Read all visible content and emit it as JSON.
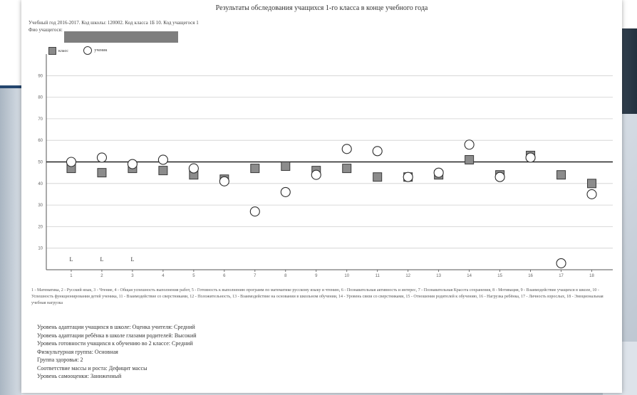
{
  "report": {
    "title": "Результаты обследования учащихся 1-го класса в конце учебного года",
    "meta_line1": "Учебный год 2016-2017. Код школы: 120002. Код класса 1Б 10. Код учащегося 1",
    "meta_line2": "Фио учащегося:"
  },
  "legend": {
    "class_label": "класс",
    "student_label": "ученик"
  },
  "chart_data": {
    "type": "scatter",
    "categories": [
      "1",
      "2",
      "3",
      "4",
      "5",
      "6",
      "7",
      "8",
      "9",
      "10",
      "11",
      "12",
      "13",
      "14",
      "15",
      "16",
      "17",
      "18"
    ],
    "ylim": [
      0,
      100
    ],
    "yticks": [
      10,
      20,
      30,
      40,
      50,
      60,
      70,
      80,
      90
    ],
    "reference_line": 50,
    "series": [
      {
        "name": "класс",
        "marker": "square",
        "values": [
          47,
          45,
          47,
          46,
          44,
          42,
          47,
          48,
          46,
          47,
          43,
          43,
          44,
          51,
          44,
          53,
          44,
          40
        ]
      },
      {
        "name": "ученик",
        "marker": "circle",
        "values": [
          50,
          52,
          49,
          51,
          47,
          41,
          27,
          36,
          44,
          56,
          55,
          43,
          45,
          58,
          43,
          52,
          3,
          35
        ]
      }
    ],
    "low_markers": [
      {
        "x": "1",
        "label": "L"
      },
      {
        "x": "2",
        "label": "L"
      },
      {
        "x": "3",
        "label": "L"
      }
    ],
    "low_marker_level": 5
  },
  "footnote": "1 - Математика, 2 - Русский язык, 3 - Чтение, 4 - Общая успешность выполнения работ, 5 - Готовность к выполнению программ по математике русскому языку и чтению, 6 - Познавательная активность и интерес, 7 - Познавательная Красота сохранения, 8 - Мотивация, 9 - Взаимодействие учащихся в школе, 10 - Успешность функционирования детей ученика, 11 - Взаимодействие со сверстниками, 12 - Положительность, 13 - Взаимодействие на основании в школьном обучении, 14 - Уровень связи со сверстниками, 15 - Отношения родителей к обучению, 16 - Нагрузка ребёнка, 17 - Личность взрослых, 18 - Эмоциональная учебная нагрузка",
  "summary": [
    "Уровень адаптации учащихся в школе: Оценка учителя: Средний",
    "Уровень адаптации ребёнка в школе глазами родителей: Высокий",
    "Уровень готовности учащихся к обучению во 2 классе: Средний",
    "Физкультурная группа: Основная",
    "Группа здоровья: 2",
    "Соответствие массы и роста: Дефицит массы",
    "Уровень самооценки: Заниженный"
  ]
}
